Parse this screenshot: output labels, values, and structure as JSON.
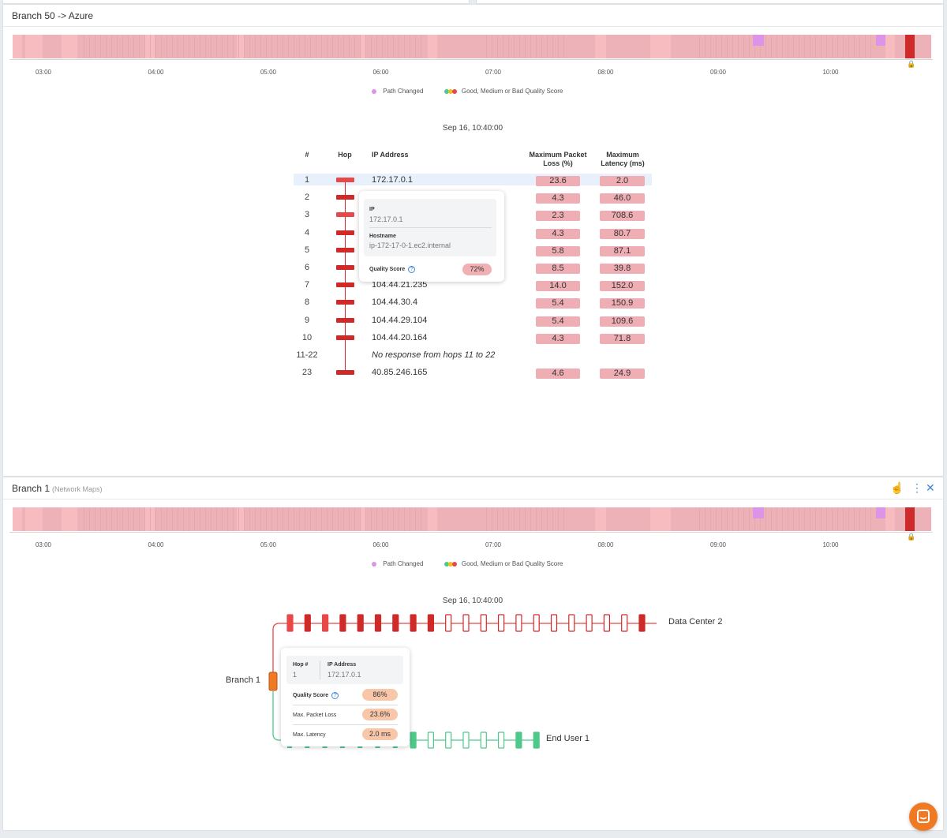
{
  "colors": {
    "timeline_base": "#ecb2b8",
    "timeline_light": "#f6bcbf",
    "path_changed": "#dc93e8",
    "bad": "#cf2a2a",
    "bad_medium": "#e84848",
    "good": "#4ec98a",
    "origin": "#ef7a23",
    "accent": "#3c86d6"
  },
  "time_ticks": [
    "03:00",
    "04:00",
    "05:00",
    "06:00",
    "07:00",
    "08:00",
    "09:00",
    "10:00"
  ],
  "legend": {
    "path_changed": "Path Changed",
    "quality": "Good, Medium or Bad Quality Score"
  },
  "panel1": {
    "title": "Branch 50 -> Azure",
    "timestamp": "Sep 16, 10:40:00",
    "columns": {
      "num": "#",
      "hop": "Hop",
      "ip": "IP Address",
      "loss": "Maximum Packet Loss (%)",
      "latency": "Maximum Latency (ms)"
    },
    "rows": [
      {
        "num": "1",
        "ip": "172.17.0.1",
        "loss": "23.6",
        "latency": "2.0"
      },
      {
        "num": "2",
        "ip": "",
        "loss": "4.3",
        "latency": "46.0"
      },
      {
        "num": "3",
        "ip": "",
        "loss": "2.3",
        "latency": "708.6"
      },
      {
        "num": "4",
        "ip": "",
        "loss": "4.3",
        "latency": "80.7"
      },
      {
        "num": "5",
        "ip": "",
        "loss": "5.8",
        "latency": "87.1"
      },
      {
        "num": "6",
        "ip": "",
        "loss": "8.5",
        "latency": "39.8"
      },
      {
        "num": "7",
        "ip": "104.44.21.235",
        "loss": "14.0",
        "latency": "152.0"
      },
      {
        "num": "8",
        "ip": "104.44.30.4",
        "loss": "5.4",
        "latency": "150.9"
      },
      {
        "num": "9",
        "ip": "104.44.29.104",
        "loss": "5.4",
        "latency": "109.6"
      },
      {
        "num": "10",
        "ip": "104.44.20.164",
        "loss": "4.3",
        "latency": "71.8"
      },
      {
        "num": "11-22",
        "ip": "No response from hops 11 to 22",
        "loss": "",
        "latency": ""
      },
      {
        "num": "23",
        "ip": "40.85.246.165",
        "loss": "4.6",
        "latency": "24.9"
      }
    ],
    "tooltip": {
      "ip_label": "IP",
      "ip_value": "172.17.0.1",
      "hostname_label": "Hostname",
      "hostname_value": "ip-172-17-0-1.ec2.internal",
      "quality_label": "Quality Score",
      "quality_value": "72%"
    }
  },
  "panel2": {
    "title": "Branch 1",
    "subtitle": "(Network Maps)",
    "timestamp": "Sep 16, 10:40:00",
    "origin_label": "Branch 1",
    "dest1_label": "Data Center 2",
    "dest2_label": "End User 1",
    "tooltip": {
      "hop_label": "Hop #",
      "hop_value": "1",
      "ip_label": "IP Address",
      "ip_value": "172.17.0.1",
      "quality_label": "Quality Score",
      "quality_value": "86%",
      "loss_label": "Max. Packet Loss",
      "loss_value": "23.6%",
      "latency_label": "Max. Latency",
      "latency_value": "2.0 ms"
    }
  }
}
